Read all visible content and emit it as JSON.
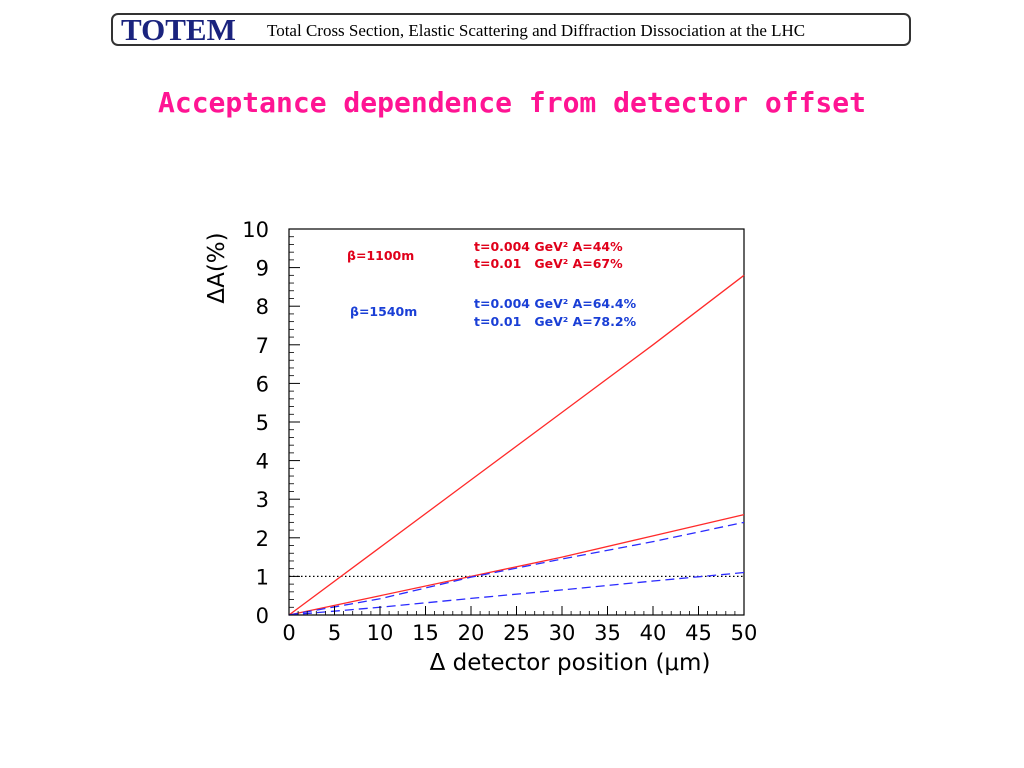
{
  "header": {
    "logo_text": "TOTEM",
    "title": "Total Cross Section, Elastic Scattering and Diffraction Dissociation at the LHC"
  },
  "slide": {
    "title": "Acceptance dependence from detector offset"
  },
  "colors": {
    "title": "#ff1493",
    "red_series": "#ff2a2a",
    "blue_series": "#2a2aff",
    "red_text": "#e0001a",
    "blue_text": "#1a3fd6",
    "logo": "#1a237e"
  },
  "chart_data": {
    "type": "line",
    "xlabel": "Δ detector position (μm)",
    "ylabel": "ΔA(%)",
    "xlim": [
      0,
      50
    ],
    "ylim": [
      0,
      10
    ],
    "x_ticks": [
      "0",
      "5",
      "10",
      "15",
      "20",
      "25",
      "30",
      "35",
      "40",
      "45",
      "50"
    ],
    "y_ticks": [
      "0",
      "1",
      "2",
      "3",
      "4",
      "5",
      "6",
      "7",
      "8",
      "9",
      "10"
    ],
    "grid": false,
    "series": [
      {
        "group": "β=1100m",
        "label": "t=0.004 GeV² A=44%",
        "style": "solid",
        "color": "#ff2a2a",
        "x": [
          0,
          10,
          20,
          30,
          40,
          50
        ],
        "y": [
          0,
          1.75,
          3.5,
          5.25,
          7.0,
          8.8
        ]
      },
      {
        "group": "β=1100m",
        "label": "t=0.01 GeV² A=67%",
        "style": "solid",
        "color": "#ff2a2a",
        "x": [
          0,
          10,
          20,
          30,
          40,
          50
        ],
        "y": [
          0,
          0.5,
          1.0,
          1.5,
          2.05,
          2.6
        ]
      },
      {
        "group": "β=1540m",
        "label": "t=0.004 GeV² A=64.4%",
        "style": "dashed",
        "color": "#2a2aff",
        "x": [
          0,
          10,
          20,
          30,
          40,
          50
        ],
        "y": [
          0,
          0.42,
          0.98,
          1.45,
          1.9,
          2.4
        ]
      },
      {
        "group": "β=1540m",
        "label": "t=0.01 GeV² A=78.2%",
        "style": "dashed",
        "color": "#2a2aff",
        "x": [
          0,
          10,
          20,
          30,
          40,
          50
        ],
        "y": [
          0,
          0.2,
          0.43,
          0.65,
          0.88,
          1.1
        ]
      }
    ],
    "reference_line": {
      "y": 1,
      "style": "dotted",
      "color": "#000000"
    },
    "annotations": [
      {
        "text": "β=1100m",
        "color": "#e0001a"
      },
      {
        "text": "t=0.004 GeV² A=44%",
        "color": "#e0001a"
      },
      {
        "text": "t=0.01   GeV² A=67%",
        "color": "#e0001a"
      },
      {
        "text": "β=1540m",
        "color": "#1a3fd6"
      },
      {
        "text": "t=0.004 GeV² A=64.4%",
        "color": "#1a3fd6"
      },
      {
        "text": "t=0.01   GeV² A=78.2%",
        "color": "#1a3fd6"
      }
    ]
  }
}
